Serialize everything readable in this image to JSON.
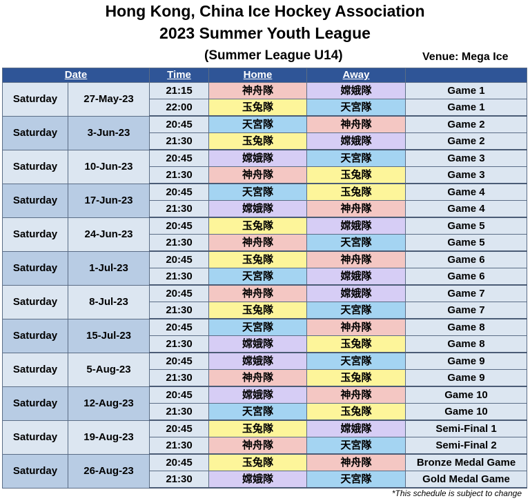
{
  "header": {
    "title_line1": "Hong Kong, China Ice Hockey Association",
    "title_line2": "2023 Summer Youth League",
    "subtitle": "(Summer League U14)",
    "venue": "Venue: Mega Ice"
  },
  "columns": {
    "date": "Date",
    "time": "Time",
    "home": "Home",
    "away": "Away"
  },
  "team_colors": {
    "神舟隊": "#f4c7c3",
    "嫦娥隊": "#d6cdf5",
    "玉兔隊": "#fdf59a",
    "天宮隊": "#a4d4f2"
  },
  "days": [
    {
      "day": "Saturday",
      "date": "27-May-23",
      "games": [
        {
          "time": "21:15",
          "home": "神舟隊",
          "away": "嫦娥隊",
          "game": "Game 1"
        },
        {
          "time": "22:00",
          "home": "玉兔隊",
          "away": "天宮隊",
          "game": "Game 1"
        }
      ]
    },
    {
      "day": "Saturday",
      "date": "3-Jun-23",
      "games": [
        {
          "time": "20:45",
          "home": "天宮隊",
          "away": "神舟隊",
          "game": "Game 2"
        },
        {
          "time": "21:30",
          "home": "玉兔隊",
          "away": "嫦娥隊",
          "game": "Game 2"
        }
      ]
    },
    {
      "day": "Saturday",
      "date": "10-Jun-23",
      "games": [
        {
          "time": "20:45",
          "home": "嫦娥隊",
          "away": "天宮隊",
          "game": "Game 3"
        },
        {
          "time": "21:30",
          "home": "神舟隊",
          "away": "玉兔隊",
          "game": "Game 3"
        }
      ]
    },
    {
      "day": "Saturday",
      "date": "17-Jun-23",
      "games": [
        {
          "time": "20:45",
          "home": "天宮隊",
          "away": "玉兔隊",
          "game": "Game 4"
        },
        {
          "time": "21:30",
          "home": "嫦娥隊",
          "away": "神舟隊",
          "game": "Game 4"
        }
      ]
    },
    {
      "day": "Saturday",
      "date": "24-Jun-23",
      "games": [
        {
          "time": "20:45",
          "home": "玉兔隊",
          "away": "嫦娥隊",
          "game": "Game 5"
        },
        {
          "time": "21:30",
          "home": "神舟隊",
          "away": "天宮隊",
          "game": "Game 5"
        }
      ]
    },
    {
      "day": "Saturday",
      "date": "1-Jul-23",
      "games": [
        {
          "time": "20:45",
          "home": "玉兔隊",
          "away": "神舟隊",
          "game": "Game 6"
        },
        {
          "time": "21:30",
          "home": "天宮隊",
          "away": "嫦娥隊",
          "game": "Game 6"
        }
      ]
    },
    {
      "day": "Saturday",
      "date": "8-Jul-23",
      "games": [
        {
          "time": "20:45",
          "home": "神舟隊",
          "away": "嫦娥隊",
          "game": "Game 7"
        },
        {
          "time": "21:30",
          "home": "玉兔隊",
          "away": "天宮隊",
          "game": "Game 7"
        }
      ]
    },
    {
      "day": "Saturday",
      "date": "15-Jul-23",
      "games": [
        {
          "time": "20:45",
          "home": "天宮隊",
          "away": "神舟隊",
          "game": "Game 8"
        },
        {
          "time": "21:30",
          "home": "嫦娥隊",
          "away": "玉兔隊",
          "game": "Game 8"
        }
      ]
    },
    {
      "day": "Saturday",
      "date": "5-Aug-23",
      "games": [
        {
          "time": "20:45",
          "home": "嫦娥隊",
          "away": "天宮隊",
          "game": "Game 9"
        },
        {
          "time": "21:30",
          "home": "神舟隊",
          "away": "玉兔隊",
          "game": "Game 9"
        }
      ]
    },
    {
      "day": "Saturday",
      "date": "12-Aug-23",
      "games": [
        {
          "time": "20:45",
          "home": "嫦娥隊",
          "away": "神舟隊",
          "game": "Game 10"
        },
        {
          "time": "21:30",
          "home": "天宮隊",
          "away": "玉兔隊",
          "game": "Game 10"
        }
      ]
    },
    {
      "day": "Saturday",
      "date": "19-Aug-23",
      "games": [
        {
          "time": "20:45",
          "home": "玉兔隊",
          "away": "嫦娥隊",
          "game": "Semi-Final 1"
        },
        {
          "time": "21:30",
          "home": "神舟隊",
          "away": "天宮隊",
          "game": "Semi-Final 2"
        }
      ]
    },
    {
      "day": "Saturday",
      "date": "26-Aug-23",
      "games": [
        {
          "time": "20:45",
          "home": "玉兔隊",
          "away": "神舟隊",
          "game": "Bronze Medal Game"
        },
        {
          "time": "21:30",
          "home": "嫦娥隊",
          "away": "天宮隊",
          "game": "Gold Medal Game"
        }
      ]
    }
  ],
  "footnote": "*This schedule is subject to change"
}
